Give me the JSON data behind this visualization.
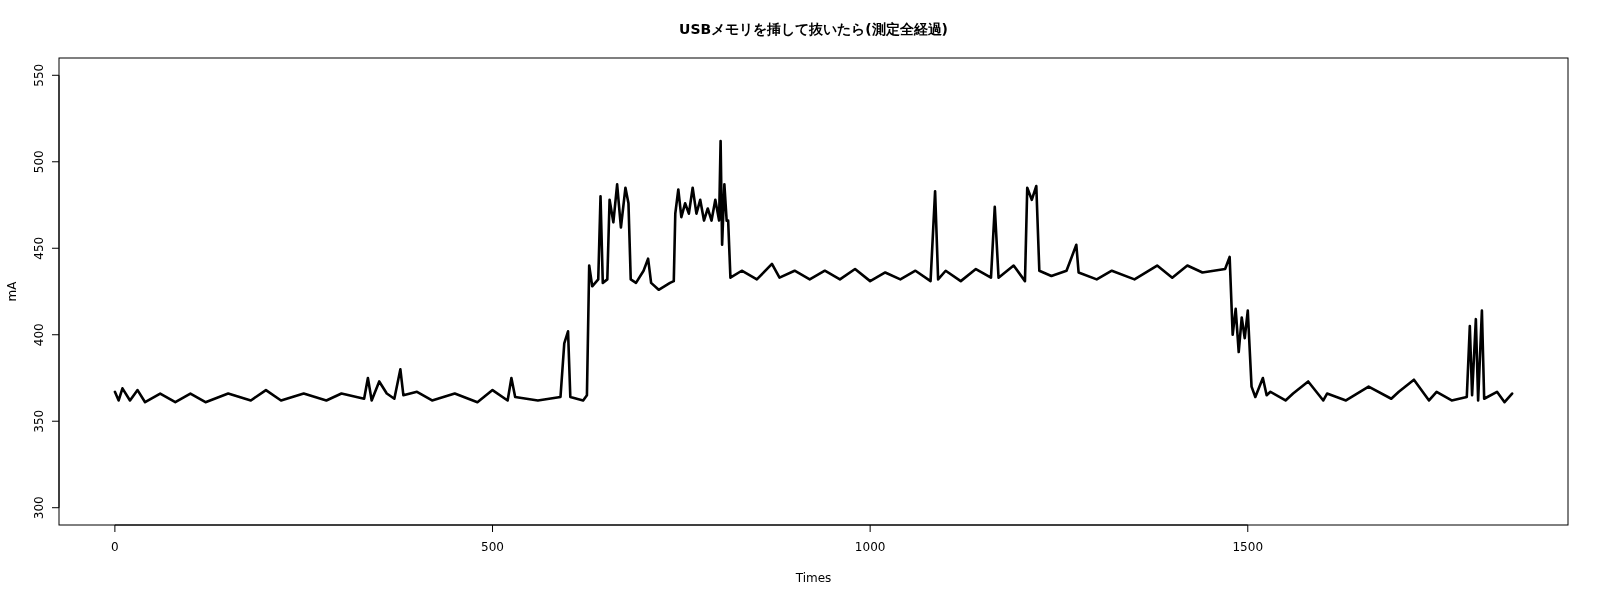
{
  "chart_data": {
    "type": "line",
    "title": "USBメモリを挿して抜いたら(測定全経過)",
    "xlabel": "Times",
    "ylabel": "mA",
    "xlim": [
      -74,
      1924
    ],
    "ylim": [
      290,
      560
    ],
    "xticks": [
      0,
      500,
      1000,
      1500
    ],
    "yticks": [
      300,
      350,
      400,
      450,
      500,
      550
    ],
    "grid": false,
    "marker": "none",
    "line_style": "solid",
    "series": [
      {
        "color": "#000000",
        "x": [
          0,
          5,
          10,
          20,
          30,
          40,
          60,
          80,
          100,
          120,
          150,
          180,
          200,
          220,
          250,
          280,
          300,
          330,
          335,
          340,
          350,
          360,
          370,
          378,
          382,
          400,
          420,
          450,
          480,
          500,
          520,
          525,
          530,
          560,
          590,
          595,
          600,
          603,
          620,
          625,
          628,
          632,
          640,
          643,
          646,
          652,
          655,
          660,
          665,
          670,
          676,
          680,
          683,
          690,
          700,
          706,
          710,
          720,
          735,
          740,
          742,
          746,
          750,
          755,
          760,
          765,
          770,
          775,
          780,
          785,
          790,
          795,
          800,
          802,
          804,
          807,
          810,
          812,
          815,
          830,
          850,
          870,
          880,
          900,
          920,
          940,
          960,
          980,
          1000,
          1020,
          1040,
          1060,
          1080,
          1086,
          1090,
          1100,
          1120,
          1140,
          1160,
          1165,
          1170,
          1190,
          1205,
          1208,
          1214,
          1220,
          1224,
          1240,
          1260,
          1273,
          1276,
          1300,
          1320,
          1350,
          1380,
          1400,
          1420,
          1440,
          1470,
          1476,
          1480,
          1484,
          1488,
          1492,
          1496,
          1500,
          1505,
          1510,
          1520,
          1525,
          1530,
          1550,
          1560,
          1580,
          1600,
          1605,
          1630,
          1660,
          1690,
          1700,
          1720,
          1740,
          1750,
          1770,
          1790,
          1794,
          1797,
          1802,
          1805,
          1810,
          1813,
          1830,
          1840,
          1850
        ],
        "values": [
          367,
          362,
          369,
          362,
          368,
          361,
          366,
          361,
          366,
          361,
          366,
          362,
          368,
          362,
          366,
          362,
          366,
          363,
          375,
          362,
          373,
          366,
          363,
          380,
          365,
          367,
          362,
          366,
          361,
          368,
          362,
          375,
          364,
          362,
          364,
          395,
          402,
          364,
          362,
          365,
          440,
          428,
          432,
          480,
          430,
          432,
          478,
          465,
          487,
          462,
          485,
          476,
          432,
          430,
          437,
          444,
          430,
          426,
          430,
          431,
          470,
          484,
          468,
          476,
          470,
          485,
          470,
          478,
          466,
          473,
          466,
          478,
          466,
          512,
          452,
          487,
          466,
          466,
          433,
          437,
          432,
          441,
          433,
          437,
          432,
          437,
          432,
          438,
          431,
          436,
          432,
          437,
          431,
          483,
          432,
          437,
          431,
          438,
          433,
          474,
          433,
          440,
          431,
          485,
          478,
          486,
          437,
          434,
          437,
          452,
          436,
          432,
          437,
          432,
          440,
          433,
          440,
          436,
          438,
          445,
          400,
          415,
          390,
          410,
          398,
          414,
          370,
          364,
          375,
          365,
          367,
          362,
          366,
          373,
          362,
          366,
          362,
          370,
          363,
          367,
          374,
          362,
          367,
          362,
          364,
          405,
          365,
          409,
          362,
          414,
          363,
          367,
          361,
          366
        ]
      }
    ]
  }
}
